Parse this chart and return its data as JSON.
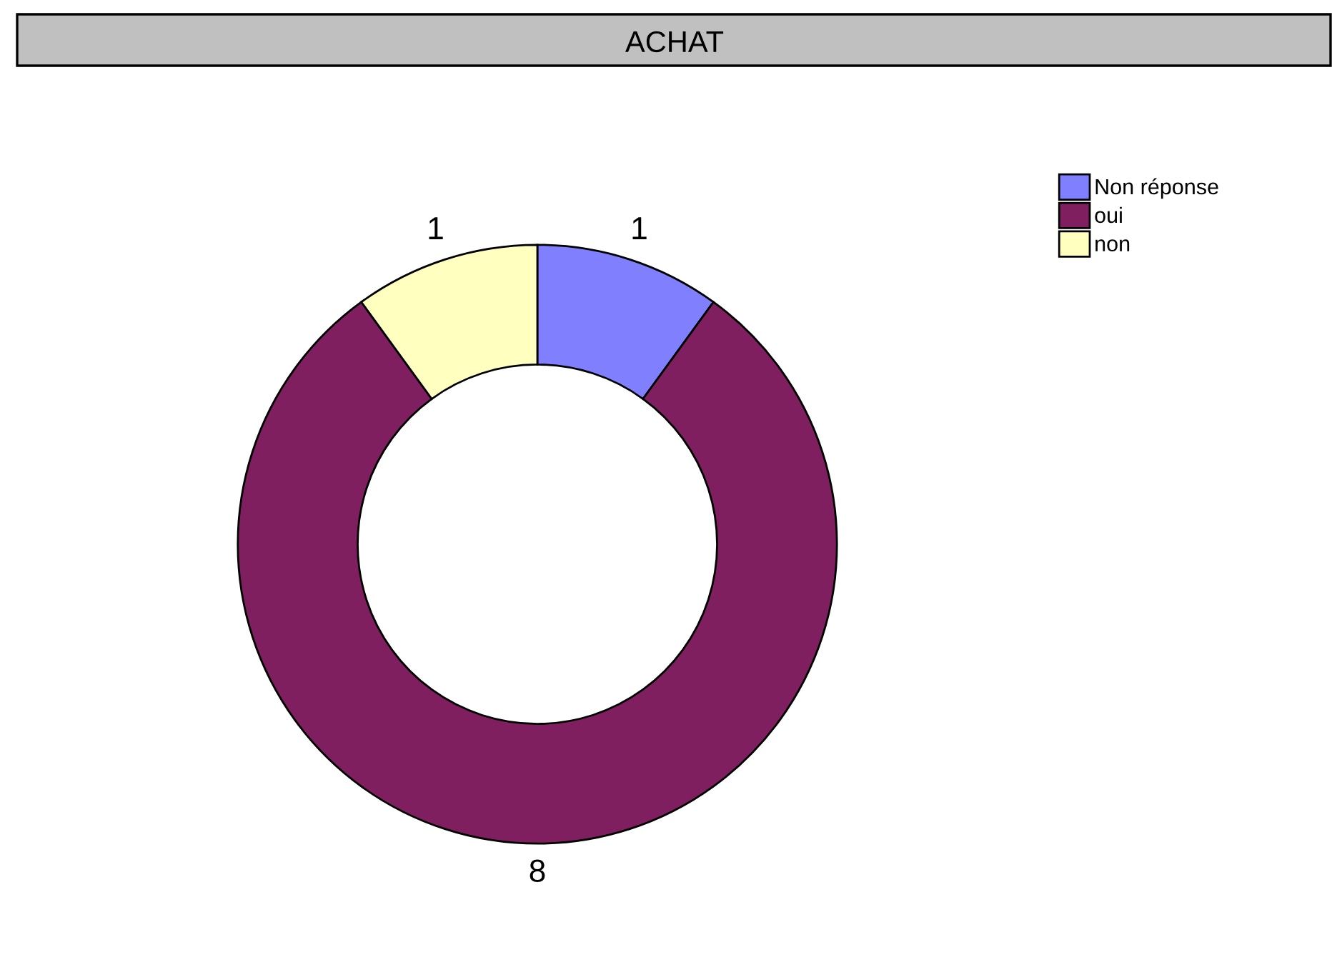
{
  "chart_data": {
    "type": "donut",
    "title": "ACHAT",
    "categories": [
      "Non réponse",
      "oui",
      "non"
    ],
    "values": [
      1,
      8,
      1
    ],
    "colors": [
      "#8080ff",
      "#7f1f5f",
      "#ffffc0"
    ],
    "data_labels": true,
    "legend": "top right"
  }
}
